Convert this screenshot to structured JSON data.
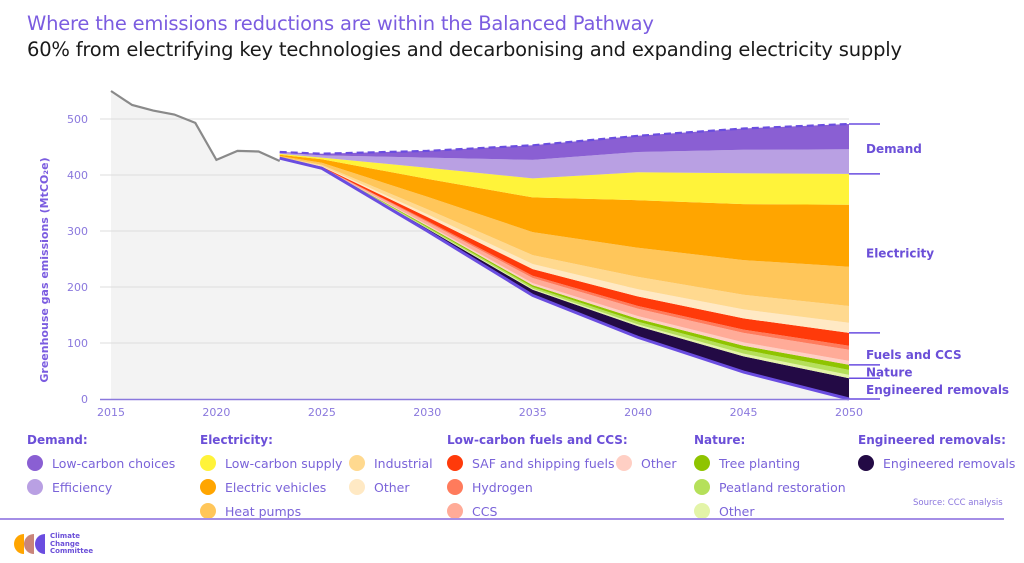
{
  "header": {
    "title": "Where the emissions reductions are within the Balanced Pathway",
    "subtitle": "60% from electrifying key technologies and decarbonising and expanding electricity supply"
  },
  "chart_data": {
    "type": "area",
    "ylabel": "Greenhouse gas emissions (MtCO₂e)",
    "xlabel": "",
    "xlim": [
      2015,
      2050
    ],
    "ylim": [
      0,
      550
    ],
    "xticks": [
      "2015",
      "2020",
      "2025",
      "2030",
      "2035",
      "2040",
      "2045",
      "2050"
    ],
    "yticks": [
      "0",
      "100",
      "200",
      "300",
      "400",
      "500"
    ],
    "grid": true,
    "historical": {
      "x": [
        2015,
        2016,
        2017,
        2018,
        2019,
        2020,
        2021,
        2022,
        2023
      ],
      "values": [
        550,
        525,
        515,
        508,
        493,
        427,
        443,
        442,
        425
      ],
      "color": "#8a8a8a"
    },
    "x": [
      2023,
      2025,
      2030,
      2035,
      2040,
      2045,
      2050
    ],
    "baseline": {
      "values": [
        441,
        438,
        443,
        453,
        470,
        483,
        491
      ],
      "style": "dashed",
      "color": "#6a4de0"
    },
    "pathway": {
      "values": [
        430,
        412,
        300,
        185,
        110,
        48,
        0
      ],
      "color": "#6a4de0"
    },
    "series": [
      {
        "name": "Engineered removals",
        "color": "#230a45",
        "values": [
          0,
          1,
          4,
          10,
          20,
          28,
          37
        ]
      },
      {
        "name": "Other (Nature)",
        "color": "#e3f4a8",
        "values": [
          0,
          0,
          1,
          2,
          3,
          5,
          6
        ]
      },
      {
        "name": "Peatland restoration",
        "color": "#b5e05a",
        "values": [
          0,
          0,
          2,
          3,
          5,
          7,
          9
        ]
      },
      {
        "name": "Tree planting",
        "color": "#8fc400",
        "values": [
          0,
          0,
          2,
          3,
          5,
          7,
          9
        ]
      },
      {
        "name": "Other (Low-carbon fuels and CCS)",
        "color": "#ffcfc4",
        "values": [
          0,
          0,
          2,
          4,
          5,
          6,
          7
        ]
      },
      {
        "name": "CCS",
        "color": "#ffab98",
        "values": [
          0,
          1,
          5,
          9,
          13,
          17,
          20
        ]
      },
      {
        "name": "Hydrogen",
        "color": "#ff7b5c",
        "values": [
          0,
          0,
          2,
          4,
          5,
          6,
          7
        ]
      },
      {
        "name": "SAF and shipping fuels",
        "color": "#ff3a0a",
        "values": [
          1,
          1,
          7,
          12,
          17,
          20,
          23
        ]
      },
      {
        "name": "Other (Electricity)",
        "color": "#ffe9c4",
        "values": [
          0,
          1,
          5,
          9,
          13,
          16,
          18
        ]
      },
      {
        "name": "Industrial",
        "color": "#ffd98f",
        "values": [
          1,
          2,
          9,
          16,
          22,
          26,
          30
        ]
      },
      {
        "name": "Heat pumps",
        "color": "#ffc65a",
        "values": [
          2,
          4,
          22,
          41,
          52,
          62,
          70
        ]
      },
      {
        "name": "Electric vehicles",
        "color": "#ffa500",
        "values": [
          2,
          6,
          32,
          62,
          85,
          100,
          111
        ]
      },
      {
        "name": "Low-carbon supply",
        "color": "#fff33a",
        "values": [
          2,
          3,
          20,
          34,
          50,
          55,
          55
        ]
      },
      {
        "name": "Efficiency",
        "color": "#b9a0e3",
        "values": [
          2,
          4,
          18,
          33,
          36,
          42,
          44
        ]
      },
      {
        "name": "Low-carbon choices",
        "color": "#8a5fd3",
        "values": [
          1,
          3,
          12,
          26,
          29,
          38,
          45
        ]
      }
    ],
    "brackets": [
      {
        "label": "Demand",
        "from": 402,
        "to": 491
      },
      {
        "label": "Electricity",
        "from": 118,
        "to": 402
      },
      {
        "label": "Fuels and CCS",
        "from": 61,
        "to": 118
      },
      {
        "label": "Nature",
        "from": 37,
        "to": 61
      },
      {
        "label": "Engineered removals",
        "from": 0,
        "to": 37
      }
    ]
  },
  "legend": {
    "groups": [
      {
        "title": "Demand:",
        "items": [
          {
            "label": "Low-carbon choices",
            "color": "#8a5fd3"
          },
          {
            "label": "Efficiency",
            "color": "#b9a0e3"
          }
        ]
      },
      {
        "title": "Electricity:",
        "items": [
          {
            "label": "Low-carbon supply",
            "color": "#fff33a"
          },
          {
            "label": "Electric vehicles",
            "color": "#ffa500"
          },
          {
            "label": "Heat pumps",
            "color": "#ffc65a"
          },
          {
            "label": "Industrial",
            "color": "#ffd98f"
          },
          {
            "label": "Other",
            "color": "#ffe9c4"
          }
        ]
      },
      {
        "title": "Low-carbon fuels and CCS:",
        "items": [
          {
            "label": "SAF and shipping fuels",
            "color": "#ff3a0a"
          },
          {
            "label": "Hydrogen",
            "color": "#ff7b5c"
          },
          {
            "label": "CCS",
            "color": "#ffab98"
          },
          {
            "label": "Other",
            "color": "#ffcfc4"
          }
        ]
      },
      {
        "title": "Nature:",
        "items": [
          {
            "label": "Tree planting",
            "color": "#8fc400"
          },
          {
            "label": "Peatland restoration",
            "color": "#b5e05a"
          },
          {
            "label": "Other",
            "color": "#e3f4a8"
          }
        ]
      },
      {
        "title": "Engineered removals:",
        "items": [
          {
            "label": "Engineered removals",
            "color": "#230a45"
          }
        ]
      }
    ]
  },
  "source": "Source: CCC analysis",
  "logo": {
    "lines": [
      "Climate",
      "Change",
      "Committee"
    ],
    "colors": [
      "#ffa500",
      "#c9857a",
      "#6a4de0"
    ]
  }
}
